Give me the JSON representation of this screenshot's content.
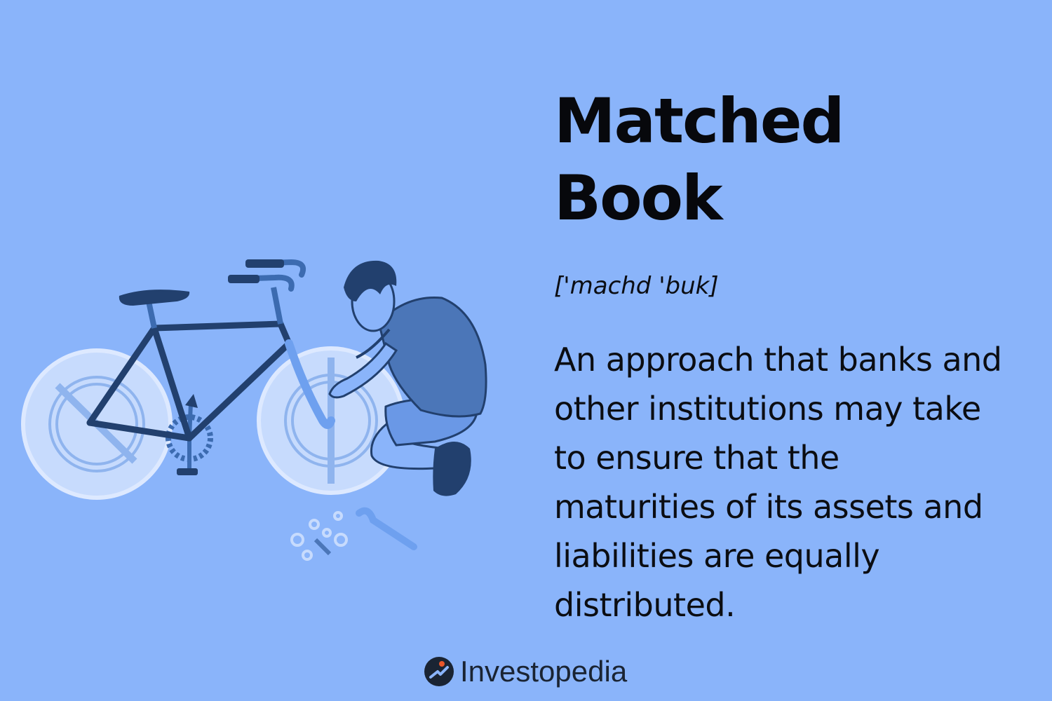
{
  "heading": {
    "title": "Matched Book",
    "pronunciation": "['machd 'buk]",
    "definition": "An approach that banks and other institutions may take to ensure that the maturities of its assets and liabilities are equally distributed."
  },
  "brand": {
    "name": "Investopedia",
    "logo_icon": "investopedia-logo-icon"
  },
  "illustration": {
    "subject": "bicycle-repair-illustration"
  },
  "colors": {
    "background": "#8ab4fa",
    "wheel_fill": "#c7dbfd",
    "frame": "#22406e",
    "accent_orange": "#e8562a"
  }
}
